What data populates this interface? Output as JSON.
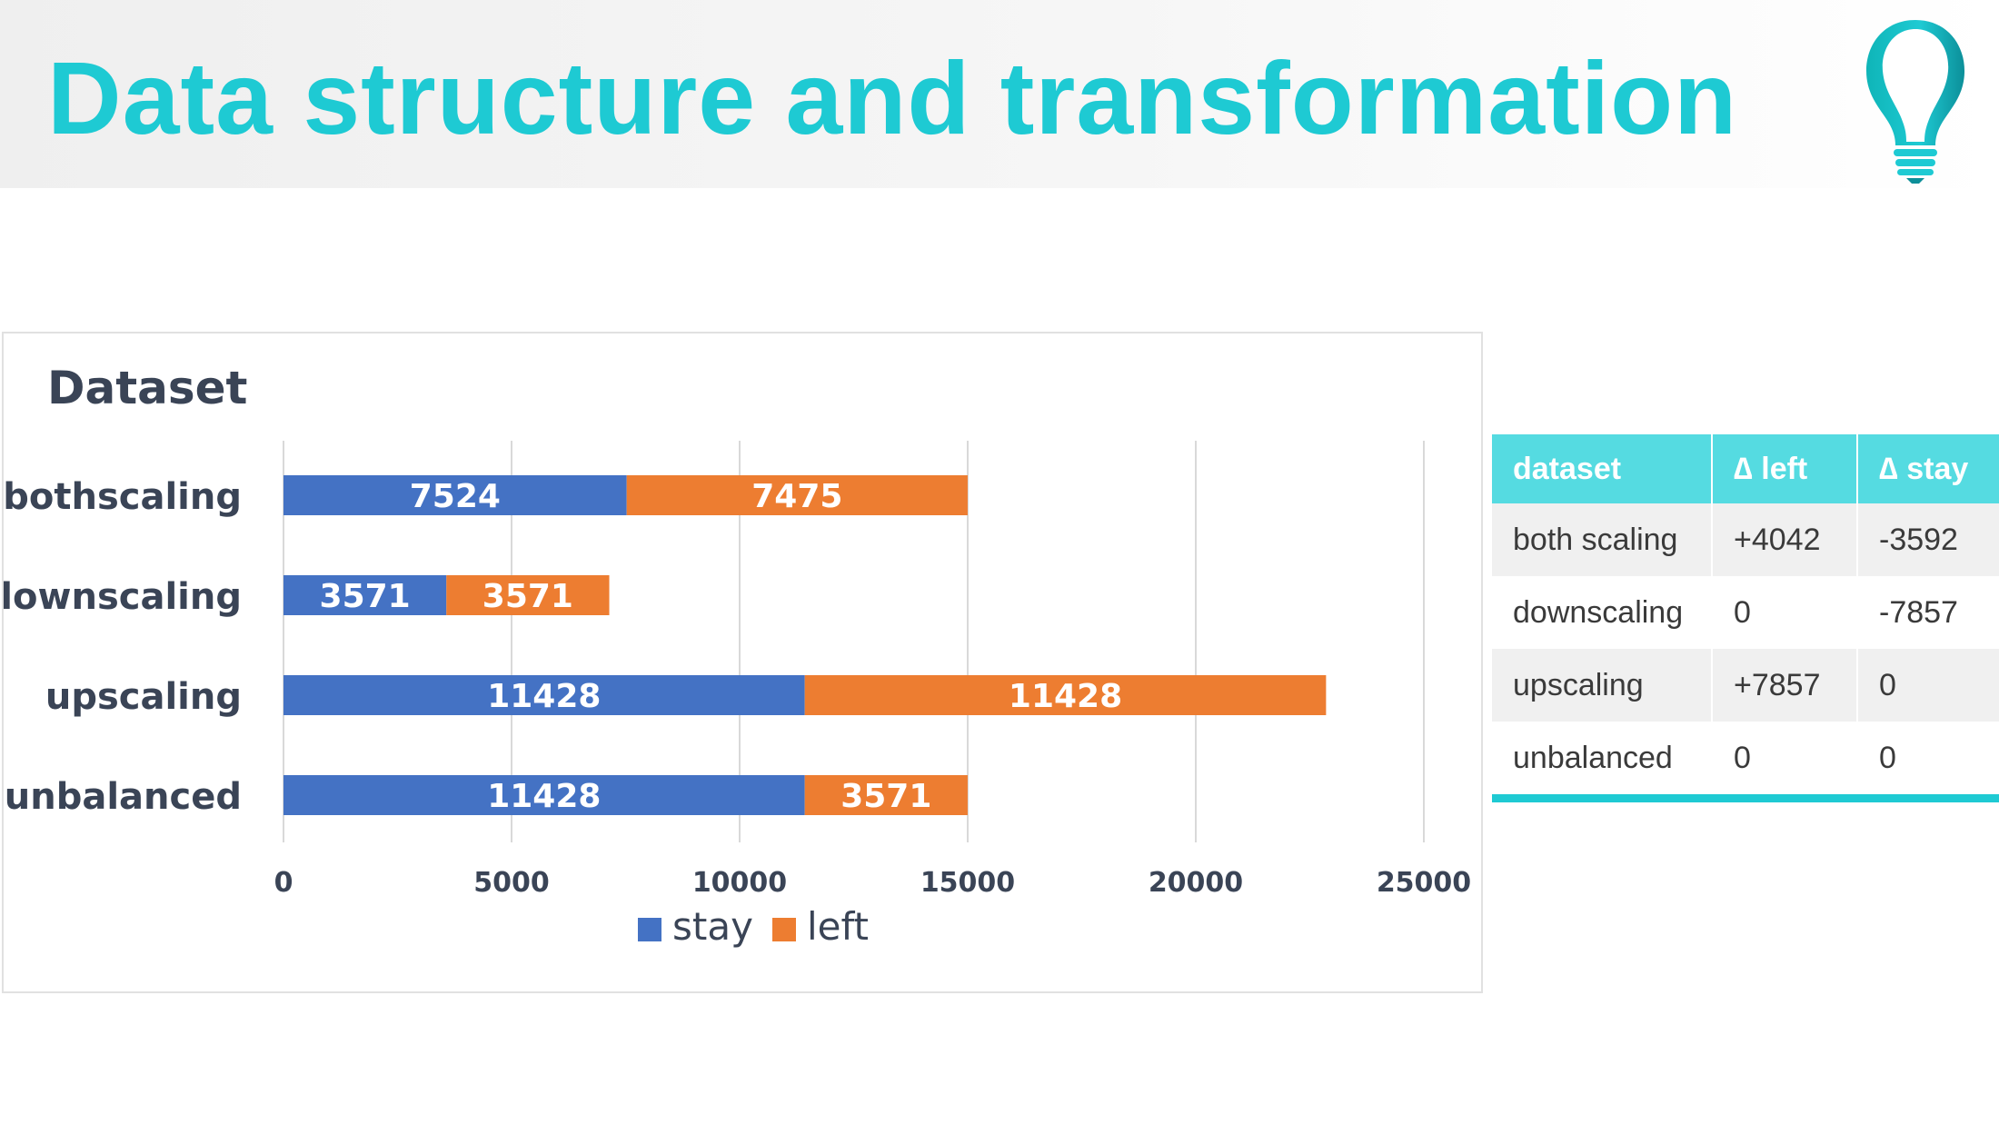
{
  "slide": {
    "title": "Data structure and transformation",
    "accent_color": "#1ecad3",
    "logo_icon": "lightbulb-icon"
  },
  "chart_data": {
    "type": "bar",
    "orientation": "horizontal",
    "stacked": true,
    "title": "Dataset",
    "xlabel": "",
    "ylabel": "",
    "categories": [
      "bothscaling",
      "downscaling",
      "upscaling",
      "unbalanced"
    ],
    "series": [
      {
        "name": "stay",
        "color": "#4472c4",
        "values": [
          7524,
          3571,
          11428,
          11428
        ]
      },
      {
        "name": "left",
        "color": "#ed7d31",
        "values": [
          7475,
          3571,
          11428,
          3571
        ]
      }
    ],
    "xlim": [
      0,
      25000
    ],
    "xticks": [
      0,
      5000,
      10000,
      15000,
      20000,
      25000
    ],
    "grid": "vertical",
    "legend_position": "bottom",
    "data_labels": true
  },
  "table": {
    "headers": [
      "dataset",
      "∆ left",
      "∆ stay"
    ],
    "rows": [
      [
        "both scaling",
        "+4042",
        "-3592"
      ],
      [
        "downscaling",
        "0",
        "-7857"
      ],
      [
        "upscaling",
        "+7857",
        "0"
      ],
      [
        "unbalanced",
        "0",
        "0"
      ]
    ],
    "header_color": "#55dbe1"
  }
}
